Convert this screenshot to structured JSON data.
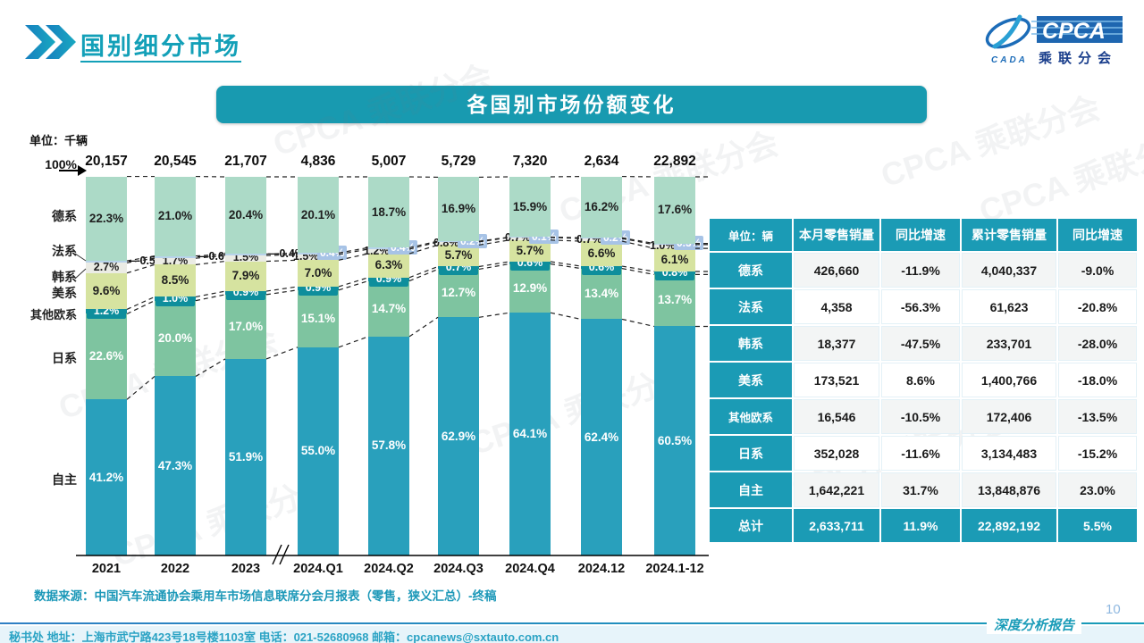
{
  "page": {
    "title": "国别细分市场",
    "page_number": "10",
    "report_type_label": "深度分析报告",
    "source_note": "数据来源：中国汽车流通协会乘用车市场信息联席分会月报表（零售，狭义汇总）-终稿",
    "footer": "秘书处   地址：上海市武宁路423号18号楼1103室  电话：021-52680968   邮箱：cpcanews@sxtauto.com.cn",
    "watermark": "CPCA 乘联分会"
  },
  "logo": {
    "cada": "CADA",
    "cpca": "CPCA",
    "subtitle": "乘联分会"
  },
  "chart": {
    "banner_title": "各国别市场份额变化",
    "unit_label": "单位：千辆",
    "axis_top_label": "100%",
    "axis_labels": [
      "德系",
      "法系",
      "韩系",
      "美系",
      "其他欧系",
      "日系",
      "自主"
    ],
    "totals": [
      "20,157",
      "20,545",
      "21,707",
      "4,836",
      "5,007",
      "5,729",
      "7,320",
      "2,634",
      "22,892"
    ]
  },
  "chart_data": {
    "type": "bar",
    "stacked": true,
    "percent": true,
    "title": "各国别市场份额变化",
    "unit": "千辆",
    "ylim": [
      0,
      100
    ],
    "legend_position": "left-axis",
    "categories": [
      "2021",
      "2022",
      "2023",
      "2024.Q1",
      "2024.Q2",
      "2024.Q3",
      "2024.Q4",
      "2024.12",
      "2024.1-12"
    ],
    "totals_thousand_units": [
      20157,
      20545,
      21707,
      4836,
      5007,
      5729,
      7320,
      2634,
      22892
    ],
    "series": [
      {
        "name": "自主",
        "color": "#29A0BC",
        "label_color": "#ffffff",
        "values": [
          41.2,
          47.3,
          51.9,
          55.0,
          57.8,
          62.9,
          64.1,
          62.4,
          60.5
        ]
      },
      {
        "name": "日系",
        "color": "#7EC4A0",
        "label_color": "#ffffff",
        "values": [
          22.6,
          20.0,
          17.0,
          15.1,
          14.7,
          12.7,
          12.9,
          13.4,
          13.7
        ]
      },
      {
        "name": "其他欧系",
        "color": "#0E8E9C",
        "label_color": "#ffffff",
        "values": [
          1.2,
          1.0,
          0.9,
          0.9,
          0.9,
          0.7,
          0.6,
          0.6,
          0.8
        ]
      },
      {
        "name": "美系",
        "color": "#D6E3A0",
        "label_color": "#1f1f1f",
        "values": [
          9.6,
          8.5,
          7.9,
          7.0,
          6.3,
          5.7,
          5.7,
          6.6,
          6.1
        ]
      },
      {
        "name": "韩系",
        "color": "#EBECE5",
        "label_color": "#1f1f1f",
        "values": [
          2.7,
          1.7,
          1.5,
          1.5,
          1.2,
          0.8,
          0.7,
          0.7,
          1.0
        ]
      },
      {
        "name": "法系",
        "color": "#B7D3EB",
        "label_color": "#ffffff",
        "chip_color": "#A7C3E6",
        "values": [
          0.5,
          0.6,
          0.4,
          0.4,
          0.4,
          0.2,
          0.1,
          0.2,
          0.3
        ]
      },
      {
        "name": "德系",
        "color": "#ACDAC7",
        "label_color": "#1f1f1f",
        "values": [
          22.3,
          21.0,
          20.4,
          20.1,
          18.7,
          16.9,
          15.9,
          16.2,
          17.6
        ]
      }
    ]
  },
  "table": {
    "unit_header": "单位：辆",
    "columns": [
      "本月零售销量",
      "同比增速",
      "累计零售销量",
      "同比增速"
    ],
    "rows": [
      {
        "label": "德系",
        "cells": [
          "426,660",
          "-11.9%",
          "4,040,337",
          "-9.0%"
        ]
      },
      {
        "label": "法系",
        "cells": [
          "4,358",
          "-56.3%",
          "61,623",
          "-20.8%"
        ]
      },
      {
        "label": "韩系",
        "cells": [
          "18,377",
          "-47.5%",
          "233,701",
          "-28.0%"
        ]
      },
      {
        "label": "美系",
        "cells": [
          "173,521",
          "8.6%",
          "1,400,766",
          "-18.0%"
        ]
      },
      {
        "label": "其他欧系",
        "cells": [
          "16,546",
          "-10.5%",
          "172,406",
          "-13.5%"
        ]
      },
      {
        "label": "日系",
        "cells": [
          "352,028",
          "-11.6%",
          "3,134,483",
          "-15.2%"
        ]
      },
      {
        "label": "自主",
        "cells": [
          "1,642,221",
          "31.7%",
          "13,848,876",
          "23.0%"
        ]
      },
      {
        "label": "总计",
        "cells": [
          "2,633,711",
          "11.9%",
          "22,892,192",
          "5.5%"
        ],
        "is_total": true
      }
    ]
  },
  "colors": {
    "primary_teal": "#1B9BB5",
    "banner": "#189AB0",
    "title": "#13A0B8",
    "dashed_line": "#222222",
    "footer_text": "#2BA3C4",
    "page_number": "#8FB8E0"
  }
}
